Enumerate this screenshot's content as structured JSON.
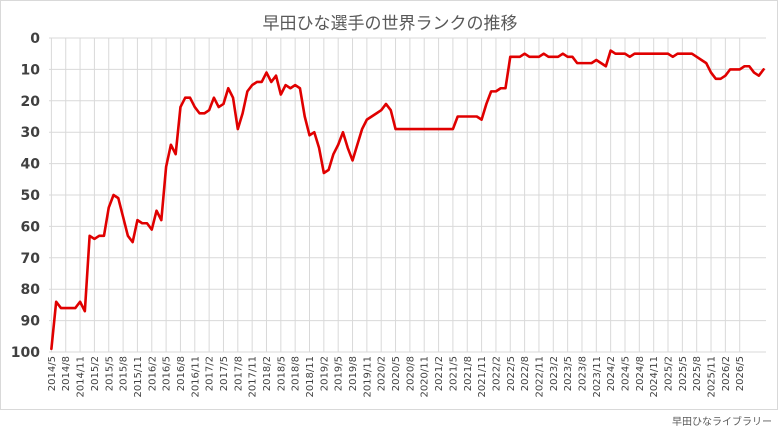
{
  "chart_data": {
    "type": "line",
    "title": "早田ひな選手の世界ランクの推移",
    "credit": "早田ひなライブラリー",
    "y_axis": {
      "reversed": true,
      "ylim": [
        0,
        100
      ],
      "ticks": [
        0,
        10,
        20,
        30,
        40,
        50,
        60,
        70,
        80,
        90,
        100
      ]
    },
    "x_tick_labels": [
      "2014/5",
      "2014/8",
      "2014/11",
      "2015/2",
      "2015/5",
      "2015/8",
      "2015/11",
      "2016/2",
      "2016/5",
      "2016/8",
      "2016/11",
      "2017/2",
      "2017/5",
      "2017/8",
      "2017/11",
      "2018/2",
      "2018/5",
      "2018/8",
      "2018/11",
      "2019/2",
      "2019/5",
      "2019/8",
      "2019/11",
      "2020/2",
      "2020/5",
      "2020/8",
      "2020/11",
      "2021/2",
      "2021/5",
      "2021/8",
      "2021/11",
      "2022/2",
      "2022/5",
      "2022/8",
      "2022/11",
      "2023/2",
      "2023/5",
      "2023/8",
      "2023/11",
      "2024/2",
      "2024/5",
      "2024/8",
      "2024/11",
      "2025/2",
      "2025/5",
      "2025/8",
      "2025/11",
      "2026/2",
      "2026/5"
    ],
    "grid": true,
    "legend": "none",
    "series": [
      {
        "color": "#e00000",
        "values": [
          99,
          84,
          86,
          86,
          86,
          86,
          84,
          87,
          63,
          64,
          63,
          63,
          54,
          50,
          51,
          57,
          63,
          65,
          58,
          59,
          59,
          61,
          55,
          58,
          41,
          34,
          37,
          22,
          19,
          19,
          22,
          24,
          24,
          23,
          19,
          22,
          21,
          16,
          19,
          29,
          24,
          17,
          15,
          14,
          14,
          11,
          14,
          12,
          18,
          15,
          16,
          15,
          16,
          25,
          31,
          30,
          35,
          43,
          42,
          37,
          34,
          30,
          35,
          39,
          34,
          29,
          26,
          25,
          24,
          23,
          21,
          23,
          29,
          29,
          29,
          29,
          29,
          29,
          29,
          29,
          29,
          29,
          29,
          29,
          29,
          25,
          25,
          25,
          25,
          25,
          26,
          21,
          17,
          17,
          16,
          16,
          6,
          6,
          6,
          5,
          6,
          6,
          6,
          5,
          6,
          6,
          6,
          5,
          6,
          6,
          8,
          8,
          8,
          8,
          7,
          8,
          9,
          4,
          5,
          5,
          5,
          6,
          5,
          5,
          5,
          5,
          5,
          5,
          5,
          5,
          6,
          5,
          5,
          5,
          5,
          6,
          7,
          8,
          11,
          13,
          13,
          12,
          10,
          10,
          10,
          9,
          9,
          11,
          12,
          10
        ]
      }
    ]
  }
}
